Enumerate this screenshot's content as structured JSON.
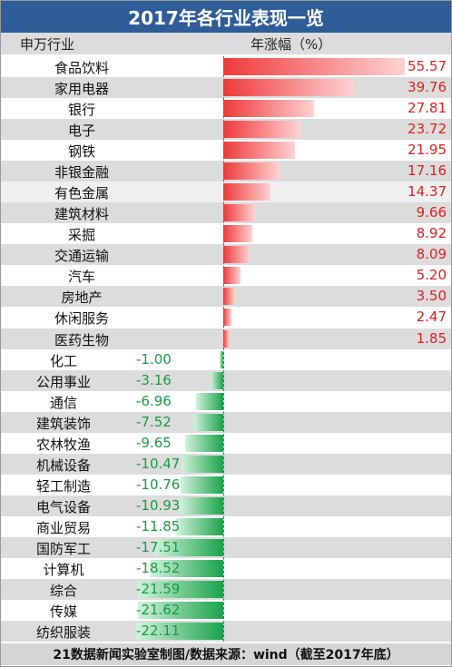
{
  "header": {
    "title": "2017年各行业表现一览",
    "col_industry": "申万行业",
    "col_change": "年涨幅（%）"
  },
  "footer": {
    "source": "21数据新闻实验室制图/数据来源：wind（截至2017年底）"
  },
  "colors": {
    "title_bg": "#2e5d98",
    "positive": "#e02020",
    "negative": "#1a9a45",
    "row_alt": "#dcdcdc"
  },
  "chart_data": {
    "type": "bar",
    "orientation": "horizontal",
    "title": "2017年各行业表现一览",
    "xlabel": "年涨幅（%）",
    "ylabel": "申万行业",
    "categories": [
      "食品饮料",
      "家用电器",
      "银行",
      "电子",
      "钢铁",
      "非银金融",
      "有色金属",
      "建筑材料",
      "采掘",
      "交通运输",
      "汽车",
      "房地产",
      "休闲服务",
      "医药生物",
      "化工",
      "公用事业",
      "通信",
      "建筑装饰",
      "农林牧渔",
      "机械设备",
      "轻工制造",
      "电气设备",
      "商业贸易",
      "国防军工",
      "计算机",
      "综合",
      "传媒",
      "纺织服装"
    ],
    "values": [
      55.57,
      39.76,
      27.81,
      23.72,
      21.95,
      17.16,
      14.37,
      9.66,
      8.92,
      8.09,
      5.2,
      3.5,
      2.47,
      1.85,
      -1.0,
      -3.16,
      -6.96,
      -7.52,
      -9.65,
      -10.47,
      -10.76,
      -10.93,
      -11.85,
      -17.51,
      -18.52,
      -21.59,
      -21.62,
      -22.11
    ],
    "labels": [
      "55.57",
      "39.76",
      "27.81",
      "23.72",
      "21.95",
      "17.16",
      "14.37",
      "9.66",
      "8.92",
      "8.09",
      "5.20",
      "3.50",
      "2.47",
      "1.85",
      "-1.00",
      "-3.16",
      "-6.96",
      "-7.52",
      "-9.65",
      "-10.47",
      "-10.76",
      "-10.93",
      "-11.85",
      "-17.51",
      "-18.52",
      "-21.59",
      "-21.62",
      "-22.11"
    ],
    "grid": false,
    "legend": "none"
  }
}
